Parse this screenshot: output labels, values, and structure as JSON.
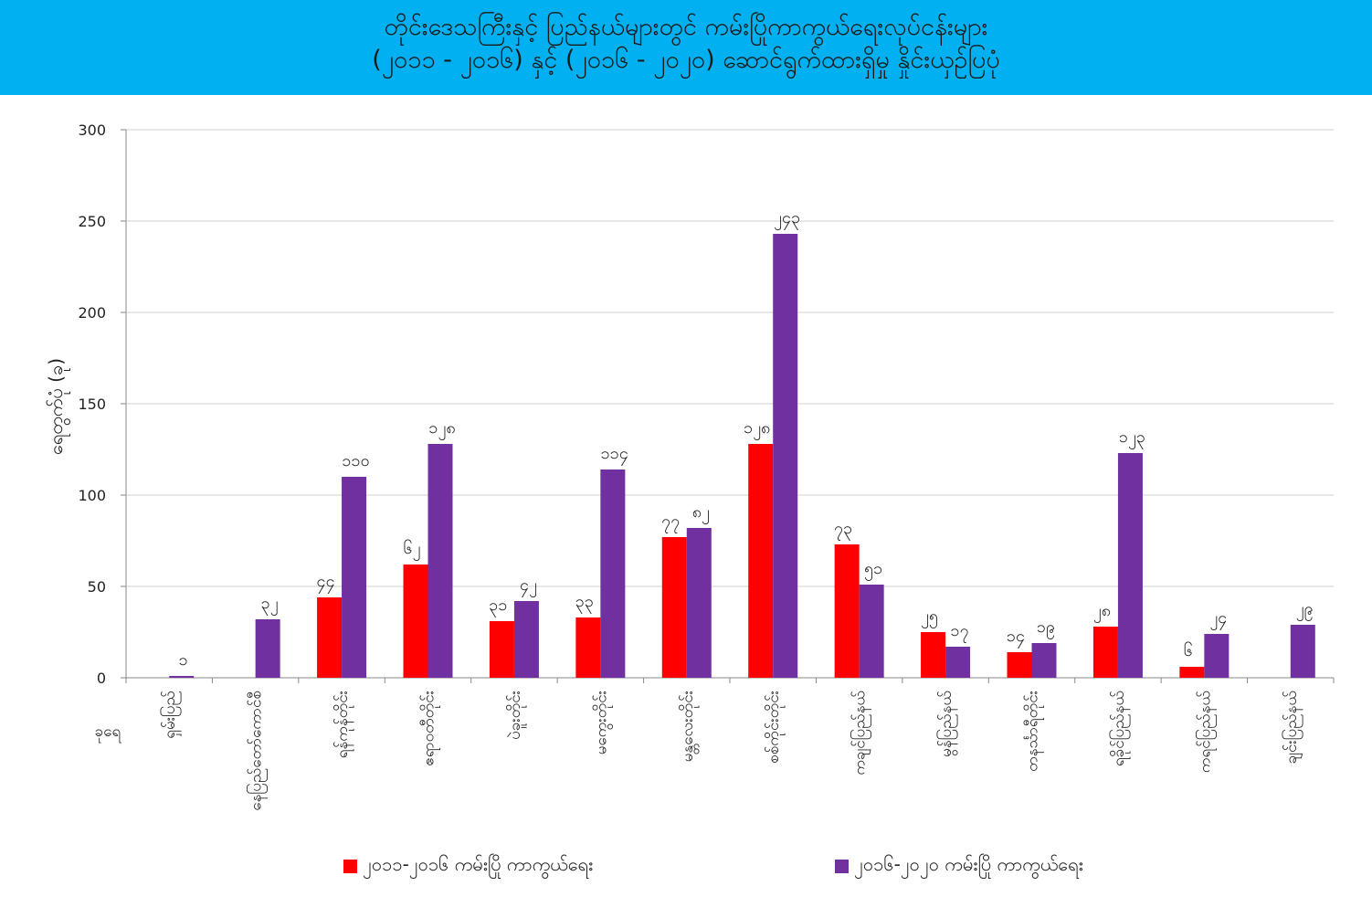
{
  "title": {
    "line1": "တိုင်းဒေသကြီးနှင့် ပြည်နယ်များတွင် ကမ်းပြိုကာကွယ်ရေးလုပ်ငန်းများ",
    "line2": "(၂၀၁၁ - ၂၀၁၆) နှင့် (၂၀၁၆ - ၂၀၂၀) ဆောင်ရွက်ထားရှိမှု နှိုင်းယှဉ်ပြပုံ"
  },
  "colors": {
    "series1": "#ff0000",
    "series2": "#7030a0",
    "banner": "#00b0f0",
    "grid": "#d0d0d0"
  },
  "chart_data": {
    "type": "bar",
    "ylabel": "ရေတွက်ပုံ (ခု)",
    "xlabel": "ခုရေ",
    "ylim": [
      0,
      300
    ],
    "yticks": [
      0,
      50,
      100,
      150,
      200,
      250,
      300
    ],
    "grid": true,
    "legend_position": "bottom",
    "categories": [
      "ရှမ်းပြည်",
      "နေပြည်တော်ကောင်စီ",
      "ရန်ကုန်တိုင်း",
      "ဧရာဝတီတိုင်း",
      "ပဲခူးတိုင်း",
      "မကွေးတိုင်း",
      "မန္တလေးတိုင်း",
      "စစ်ကိုင်းတိုင်း",
      "ကချင်ပြည်နယ်",
      "မွန်ပြည်နယ်",
      "တနင်္သာရီတိုင်း",
      "ရခိုင်ပြည်နယ်",
      "ကရင်ပြည်နယ်",
      "ချင်းပြည်နယ်"
    ],
    "series": [
      {
        "name": "၂၀၁၁-၂၀၁၆ ကမ်းပြို ကာကွယ်ရေး",
        "values": [
          null,
          null,
          44,
          62,
          31,
          33,
          77,
          128,
          73,
          25,
          14,
          28,
          6,
          null
        ],
        "labels": [
          "",
          "",
          "၄၄",
          "၆၂",
          "၃၁",
          "၃၃",
          "၇၇",
          "၁၂၈",
          "၇၃",
          "၂၅",
          "၁၄",
          "၂၈",
          "၆",
          ""
        ]
      },
      {
        "name": "၂၀၁၆-၂၀၂၀ ကမ်းပြို ကာကွယ်ရေး",
        "values": [
          1,
          32,
          110,
          128,
          42,
          114,
          82,
          243,
          51,
          17,
          19,
          123,
          24,
          29
        ],
        "labels": [
          "၁",
          "၃၂",
          "၁၁၀",
          "၁၂၈",
          "၄၂",
          "၁၁၄",
          "၈၂",
          "၂၄၃",
          "၅၁",
          "၁၇",
          "၁၉",
          "၁၂၃",
          "၂၄",
          "၂၉"
        ]
      }
    ]
  }
}
